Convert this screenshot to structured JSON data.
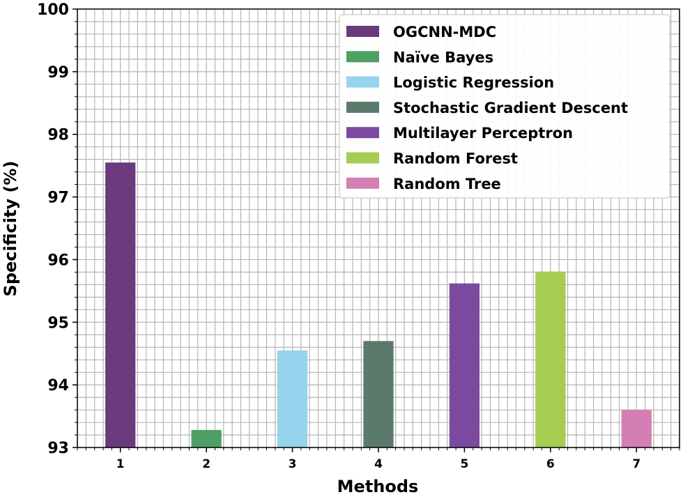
{
  "chart_data": {
    "type": "bar",
    "title": "",
    "xlabel": "Methods",
    "ylabel": "Specificity (%)",
    "ylim": [
      93,
      100
    ],
    "yticks": [
      "93",
      "94",
      "95",
      "96",
      "97",
      "98",
      "99",
      "100"
    ],
    "categories": [
      "1",
      "2",
      "3",
      "4",
      "5",
      "6",
      "7"
    ],
    "grid": true,
    "legend_position": "top-right",
    "series": [
      {
        "name": "OGCNN-MDC",
        "category": "1",
        "value": 97.55,
        "color": "#6b3a7d"
      },
      {
        "name": "Naïve Bayes",
        "category": "2",
        "value": 93.28,
        "color": "#4e9f64"
      },
      {
        "name": "Logistic Regression",
        "category": "3",
        "value": 94.55,
        "color": "#96d3ec"
      },
      {
        "name": "Stochastic Gradient Descent",
        "category": "4",
        "value": 94.7,
        "color": "#5c7a6c"
      },
      {
        "name": "Multilayer Perceptron",
        "category": "5",
        "value": 95.62,
        "color": "#7a4aa0"
      },
      {
        "name": "Random Forest",
        "category": "6",
        "value": 95.81,
        "color": "#a6cc52"
      },
      {
        "name": "Random Tree",
        "category": "7",
        "value": 93.6,
        "color": "#d47eb4"
      }
    ]
  }
}
